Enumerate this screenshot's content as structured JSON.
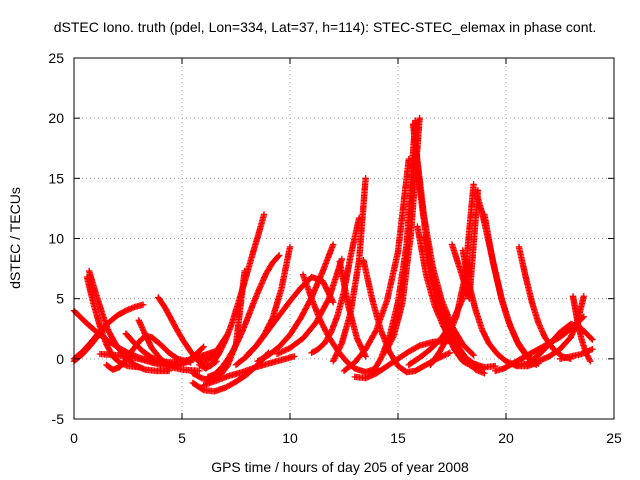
{
  "chart_data": {
    "type": "scatter",
    "title": "dSTEC Iono. truth (pdel, Lon=334, Lat=37, h=114): STEC-STEC_elemax in phase cont.",
    "xlabel": "GPS time / hours of day 205 of year 2008",
    "ylabel": "dSTEC  / TECUs",
    "xlim": [
      0,
      25
    ],
    "ylim": [
      -5,
      25
    ],
    "xticks": [
      0,
      5,
      10,
      15,
      20,
      25
    ],
    "yticks": [
      -5,
      0,
      5,
      10,
      15,
      20,
      25
    ],
    "xtick_labels": [
      "0",
      "5",
      "10",
      "15",
      "20",
      "25"
    ],
    "ytick_labels": [
      "-5",
      "0",
      "5",
      "10",
      "15",
      "20",
      "25"
    ],
    "grid": true,
    "marker": "plus",
    "color": "#ff0000",
    "arcs": [
      {
        "x": [
          0.0,
          0.5,
          1.0,
          1.5,
          2.0,
          2.5,
          3.0,
          3.6,
          4.2,
          4.8
        ],
        "y": [
          4.0,
          3.1,
          2.3,
          1.6,
          1.0,
          0.5,
          0.1,
          -0.2,
          -0.4,
          -0.5
        ]
      },
      {
        "x": [
          0.0,
          0.4,
          0.8,
          1.2,
          1.6,
          2.0,
          2.4,
          2.8,
          3.2
        ],
        "y": [
          0.0,
          0.6,
          1.4,
          2.3,
          3.0,
          3.6,
          4.0,
          4.3,
          4.5
        ]
      },
      {
        "x": [
          0.0,
          0.4,
          0.8,
          1.2,
          1.5
        ],
        "y": [
          -0.2,
          0.4,
          1.2,
          2.1,
          2.8
        ]
      },
      {
        "x": [
          0.7,
          1.0,
          1.3,
          1.6,
          2.0,
          2.4,
          2.8,
          3.3,
          3.8,
          4.4
        ],
        "y": [
          7.3,
          5.5,
          3.8,
          2.3,
          1.0,
          0.1,
          -0.5,
          -0.9,
          -1.0,
          -1.0
        ]
      },
      {
        "x": [
          0.6,
          0.9,
          1.2,
          1.5,
          1.8,
          2.1,
          2.5,
          3.0
        ],
        "y": [
          6.8,
          4.6,
          2.7,
          1.2,
          0.2,
          -0.3,
          -0.6,
          -0.7
        ]
      },
      {
        "x": [
          1.5,
          1.8,
          2.1,
          2.4,
          2.7,
          3.0,
          3.3,
          3.6,
          4.0,
          4.4,
          4.8,
          5.4
        ],
        "y": [
          -0.5,
          -0.9,
          -0.7,
          -0.1,
          0.7,
          1.4,
          1.9,
          1.8,
          1.2,
          0.5,
          0.0,
          -0.3
        ]
      },
      {
        "x": [
          2.4,
          2.8,
          3.2,
          3.6,
          4.0,
          4.5,
          5.0,
          5.5,
          6.0,
          6.5
        ],
        "y": [
          2.1,
          1.3,
          0.6,
          0.1,
          -0.2,
          -0.3,
          -0.2,
          0.0,
          0.3,
          0.6
        ]
      },
      {
        "x": [
          3.0,
          3.3,
          3.6,
          4.0,
          4.4,
          4.8,
          5.2,
          5.6,
          6.0
        ],
        "y": [
          3.2,
          2.0,
          0.9,
          0.0,
          -0.5,
          -0.6,
          -0.3,
          0.3,
          1.0
        ]
      },
      {
        "x": [
          3.9,
          4.2,
          4.5,
          4.8,
          5.1,
          5.4,
          5.7,
          6.0,
          6.3,
          6.6
        ],
        "y": [
          5.1,
          4.3,
          3.3,
          2.3,
          1.4,
          0.6,
          -0.1,
          -0.5,
          -0.6,
          -0.2
        ]
      },
      {
        "x": [
          1.2,
          2.0,
          3.0,
          4.0,
          5.0,
          5.8
        ],
        "y": [
          0.4,
          0.3,
          0.0,
          -0.5,
          -0.9,
          -1.0
        ]
      },
      {
        "x": [
          5.6,
          5.9,
          6.2,
          6.5,
          6.8,
          7.1
        ],
        "y": [
          0.2,
          0.0,
          -0.1,
          0.4,
          1.2,
          2.0
        ]
      },
      {
        "x": [
          5.8,
          6.1,
          6.4,
          6.7,
          7.0,
          7.3,
          7.6,
          7.9,
          8.2,
          8.5,
          8.8
        ],
        "y": [
          -0.5,
          -0.8,
          -0.4,
          0.4,
          1.5,
          2.9,
          4.6,
          6.4,
          8.3,
          10.1,
          12.0
        ]
      },
      {
        "x": [
          6.2,
          6.5,
          6.8,
          7.1,
          7.4,
          7.7,
          8.0,
          8.3,
          8.6,
          8.9,
          9.2,
          9.5
        ],
        "y": [
          -1.5,
          -1.3,
          -0.8,
          -0.1,
          0.8,
          1.9,
          3.2,
          4.6,
          5.9,
          7.1,
          8.0,
          8.6
        ]
      },
      {
        "x": [
          5.5,
          5.9,
          6.3,
          6.7,
          7.1,
          7.5,
          7.9
        ],
        "y": [
          -1.2,
          -1.6,
          -1.8,
          -1.5,
          -0.6,
          1.2,
          7.3
        ]
      },
      {
        "x": [
          5.5,
          6.0,
          6.5,
          7.0,
          7.5,
          8.0,
          8.5,
          9.0
        ],
        "y": [
          -2.0,
          -2.6,
          -2.7,
          -2.4,
          -1.9,
          -1.3,
          -0.5,
          0.5
        ]
      },
      {
        "x": [
          6.0,
          6.6,
          7.2,
          7.8,
          8.4,
          9.0,
          9.6,
          10.2
        ],
        "y": [
          -2.2,
          -1.8,
          -1.4,
          -1.1,
          -0.7,
          -0.4,
          -0.1,
          0.2
        ]
      },
      {
        "x": [
          8.0,
          8.4,
          8.8,
          9.2,
          9.6,
          10.0
        ],
        "y": [
          0.3,
          1.0,
          2.0,
          3.4,
          5.8,
          9.3
        ]
      },
      {
        "x": [
          7.5,
          8.0,
          8.5,
          9.0,
          9.5,
          10.0,
          10.5,
          11.0,
          11.5,
          12.0
        ],
        "y": [
          -0.5,
          0.2,
          1.2,
          2.4,
          3.6,
          4.8,
          5.9,
          6.8,
          6.5,
          4.7
        ]
      },
      {
        "x": [
          8.5,
          9.0,
          9.5,
          10.0,
          10.5,
          11.0,
          11.5,
          12.0
        ],
        "y": [
          -0.2,
          0.3,
          1.0,
          2.0,
          3.4,
          5.1,
          7.2,
          9.5
        ]
      },
      {
        "x": [
          9.4,
          10.0,
          10.6,
          11.2,
          11.8,
          12.4
        ],
        "y": [
          0.4,
          0.9,
          1.7,
          3.0,
          5.0,
          8.3
        ]
      },
      {
        "x": [
          10.6,
          11.0,
          11.4,
          11.8,
          12.2,
          12.6,
          13.0,
          13.5,
          14.0
        ],
        "y": [
          7.0,
          5.0,
          3.2,
          1.8,
          0.7,
          -0.2,
          -0.8,
          -1.1,
          -0.8
        ]
      },
      {
        "x": [
          11.0,
          11.3,
          11.6,
          11.9,
          12.2,
          12.5,
          12.8,
          13.2
        ],
        "y": [
          0.5,
          0.8,
          1.3,
          2.2,
          3.6,
          5.6,
          8.5,
          11.7
        ]
      },
      {
        "x": [
          12.3,
          12.7,
          13.1,
          13.5
        ],
        "y": [
          8.1,
          4.4,
          1.7,
          0.2
        ]
      },
      {
        "x": [
          12.0,
          12.4,
          12.8,
          13.2,
          13.5
        ],
        "y": [
          -0.2,
          1.3,
          3.8,
          8.2,
          15.0
        ]
      },
      {
        "x": [
          13.4,
          13.8,
          14.2,
          14.6,
          15.0,
          15.4,
          15.8,
          16.2,
          16.8,
          17.4
        ],
        "y": [
          8.2,
          5.0,
          2.4,
          0.6,
          -0.6,
          -1.1,
          -1.0,
          -0.6,
          0.0,
          0.5
        ]
      },
      {
        "x": [
          13.0,
          13.5,
          14.0,
          14.5,
          15.0,
          15.5,
          16.0,
          16.6,
          17.2,
          17.8
        ],
        "y": [
          -1.5,
          -1.6,
          -1.2,
          -0.6,
          0.0,
          0.6,
          1.1,
          1.4,
          1.5,
          1.4
        ]
      },
      {
        "x": [
          12.5,
          13.0,
          13.5,
          14.0,
          14.5,
          15.0,
          15.5
        ],
        "y": [
          -1.0,
          -0.3,
          0.8,
          2.4,
          4.9,
          8.9,
          16.6
        ]
      },
      {
        "x": [
          13.8,
          14.2,
          14.6,
          15.0,
          15.4,
          15.8
        ],
        "y": [
          -1.2,
          0.0,
          1.8,
          4.7,
          9.5,
          19.8
        ]
      },
      {
        "x": [
          14.4,
          14.8,
          15.2,
          15.6,
          16.0
        ],
        "y": [
          0.5,
          1.9,
          4.6,
          10.4,
          20.0
        ]
      },
      {
        "x": [
          15.7,
          16.0,
          16.3,
          16.6,
          16.9,
          17.2,
          17.6,
          18.0,
          18.5,
          19.0
        ],
        "y": [
          19.5,
          14.3,
          10.1,
          6.8,
          4.3,
          2.5,
          0.8,
          -0.2,
          -0.7,
          -0.8
        ]
      },
      {
        "x": [
          15.8,
          16.2,
          16.6,
          17.0,
          17.5,
          18.0,
          18.5
        ],
        "y": [
          18.0,
          11.9,
          7.7,
          5.0,
          2.7,
          1.2,
          0.3
        ]
      },
      {
        "x": [
          15.9,
          16.3,
          16.7,
          17.1,
          17.5,
          18.0,
          18.5,
          19.0,
          19.5
        ],
        "y": [
          11.0,
          7.0,
          4.4,
          2.7,
          1.4,
          0.3,
          -0.4,
          -0.7,
          -0.6
        ]
      },
      {
        "x": [
          16.2,
          16.6,
          17.0,
          17.4,
          17.8,
          18.2,
          18.6,
          19.0
        ],
        "y": [
          10.1,
          6.6,
          4.2,
          2.3,
          1.0,
          -0.1,
          -0.9,
          -1.2
        ]
      },
      {
        "x": [
          15.5,
          16.0,
          16.5,
          17.0,
          17.5,
          18.0,
          18.3
        ],
        "y": [
          -0.5,
          0.1,
          0.8,
          1.7,
          3.0,
          5.0,
          8.0
        ]
      },
      {
        "x": [
          16.5,
          16.9,
          17.3,
          17.7,
          18.1,
          18.5
        ],
        "y": [
          -0.5,
          0.5,
          1.8,
          3.5,
          6.8,
          14.5
        ]
      },
      {
        "x": [
          17.5,
          17.9,
          18.3,
          18.7
        ],
        "y": [
          9.5,
          7.3,
          5.0,
          14.0
        ]
      },
      {
        "x": [
          18.0,
          18.3,
          18.6,
          18.9,
          19.2,
          19.6,
          20.0,
          20.5,
          21.0,
          21.5
        ],
        "y": [
          9.0,
          6.1,
          4.0,
          2.4,
          1.3,
          0.4,
          -0.2,
          -0.6,
          -0.6,
          -0.3
        ]
      },
      {
        "x": [
          18.6,
          18.9,
          19.2,
          19.5,
          19.8,
          20.1,
          20.5,
          21.0,
          21.5
        ],
        "y": [
          14.0,
          12.1,
          9.7,
          7.3,
          5.0,
          3.2,
          1.5,
          0.2,
          -0.4
        ]
      },
      {
        "x": [
          19.0,
          19.4,
          19.8,
          20.2,
          20.6,
          21.0,
          21.4
        ],
        "y": [
          12.0,
          8.0,
          4.9,
          2.7,
          1.1,
          0.1,
          -0.5
        ]
      },
      {
        "x": [
          19.5,
          19.9,
          20.3,
          20.7,
          21.1,
          21.5,
          22.0,
          22.5,
          23.0,
          23.6
        ],
        "y": [
          -1.0,
          -0.8,
          -0.4,
          0.0,
          0.4,
          0.8,
          1.3,
          1.8,
          2.5,
          3.5
        ]
      },
      {
        "x": [
          20.6,
          20.9,
          21.2,
          21.5,
          21.8,
          22.2,
          22.6,
          23.0
        ],
        "y": [
          9.3,
          6.9,
          4.7,
          3.0,
          1.8,
          0.8,
          0.2,
          0.0
        ]
      },
      {
        "x": [
          20.5,
          21.0,
          21.5,
          22.0,
          22.5,
          23.0,
          23.5,
          24.0
        ],
        "y": [
          -0.5,
          -0.4,
          0.3,
          1.2,
          2.2,
          2.9,
          2.5,
          1.6
        ]
      },
      {
        "x": [
          21.5,
          22.0,
          22.5,
          23.0,
          23.3,
          23.6
        ],
        "y": [
          -0.2,
          0.2,
          0.8,
          1.8,
          3.0,
          5.2
        ]
      },
      {
        "x": [
          23.1,
          23.3,
          23.5,
          23.7,
          23.9
        ],
        "y": [
          5.2,
          3.2,
          1.6,
          0.5,
          -0.2
        ]
      },
      {
        "x": [
          22.5,
          23.0,
          23.5,
          24.0
        ],
        "y": [
          0.0,
          0.2,
          0.4,
          0.8
        ]
      }
    ]
  }
}
